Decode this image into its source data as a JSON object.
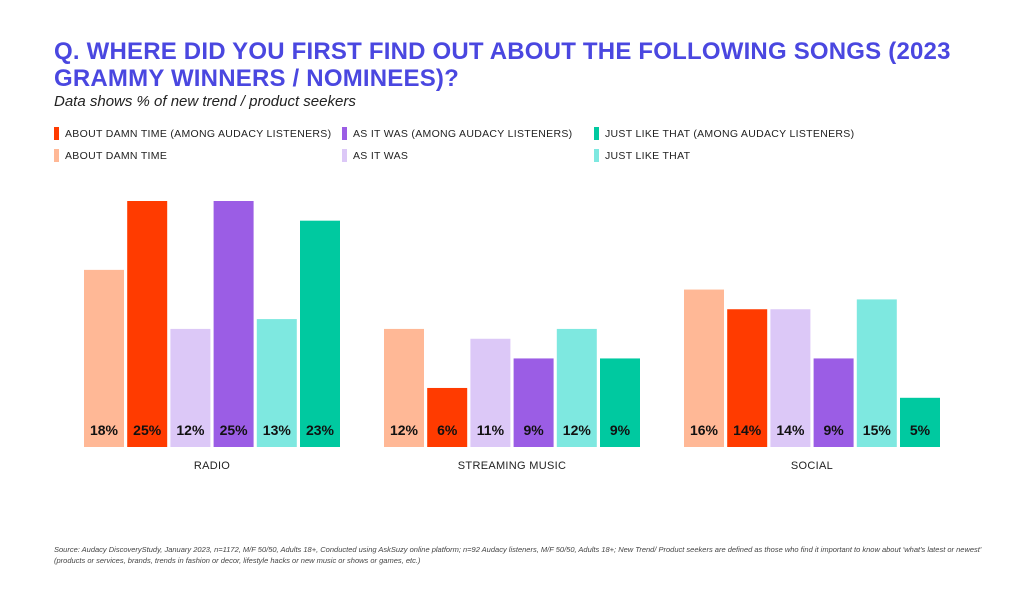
{
  "title": "Q. WHERE DID YOU FIRST FIND OUT ABOUT THE FOLLOWING SONGS (2023 GRAMMY WINNERS / NOMINEES)?",
  "subtitle": "Data shows % of new trend / product seekers",
  "source": "Source: Audacy DiscoveryStudy, January 2023, n=1172, M/F 50/50, Adults 18+, Conducted using AskSuzy online platform; n=92 Audacy listeners, M/F 50/50, Adults 18+; New Trend/ Product seekers are defined as those who find it important to know about 'what's latest or newest' (products or services, brands, trends in fashion or decor, lifestyle hacks or new music or shows or games, etc.)",
  "legend": [
    {
      "label": "ABOUT DAMN TIME (AMONG AUDACY LISTENERS)",
      "color": "#ff3b00"
    },
    {
      "label": "AS IT WAS (AMONG AUDACY LISTENERS)",
      "color": "#9b5de5"
    },
    {
      "label": "JUST LIKE THAT (AMONG AUDACY LISTENERS)",
      "color": "#00c9a0"
    },
    {
      "label": "ABOUT DAMN TIME",
      "color": "#ffb896"
    },
    {
      "label": "AS IT WAS",
      "color": "#dcc8f7"
    },
    {
      "label": "JUST LIKE THAT",
      "color": "#7ee8e0"
    }
  ],
  "chart_data": {
    "type": "bar",
    "categories": [
      "RADIO",
      "STREAMING MUSIC",
      "SOCIAL"
    ],
    "series": [
      {
        "name": "ABOUT DAMN TIME",
        "color": "#ffb896",
        "values": [
          18,
          12,
          16
        ]
      },
      {
        "name": "ABOUT DAMN TIME (AMONG AUDACY LISTENERS)",
        "color": "#ff3b00",
        "values": [
          25,
          6,
          14
        ]
      },
      {
        "name": "AS IT WAS",
        "color": "#dcc8f7",
        "values": [
          12,
          11,
          14
        ]
      },
      {
        "name": "AS IT WAS (AMONG AUDACY LISTENERS)",
        "color": "#9b5de5",
        "values": [
          25,
          9,
          9
        ]
      },
      {
        "name": "JUST LIKE THAT",
        "color": "#7ee8e0",
        "values": [
          13,
          12,
          15
        ]
      },
      {
        "name": "JUST LIKE THAT (AMONG AUDACY LISTENERS)",
        "color": "#00c9a0",
        "values": [
          23,
          9,
          5
        ]
      }
    ],
    "value_suffix": "%",
    "ylim": [
      0,
      25
    ]
  }
}
